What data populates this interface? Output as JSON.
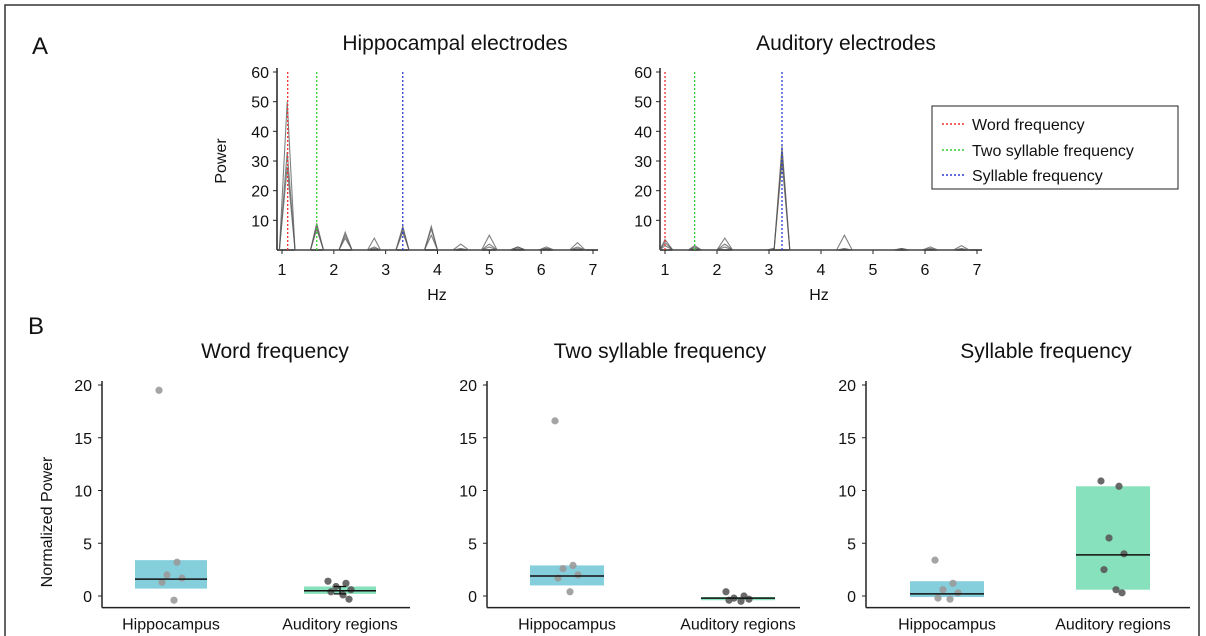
{
  "panels": {
    "a": "A",
    "b": "B"
  },
  "legend": [
    {
      "label": "Word frequency",
      "color": "#e8312f"
    },
    {
      "label": "Two syllable frequency",
      "color": "#33cc33"
    },
    {
      "label": "Syllable frequency",
      "color": "#2b3bd6"
    }
  ],
  "colors": {
    "hippocampus": "#7ecbda",
    "auditory": "#7fdfb8",
    "trace": "#555555",
    "point_light": "#9a9a9a",
    "point_dark": "#5a5a5a"
  },
  "chart_data": [
    {
      "type": "line",
      "title": "Hippocampal electrodes",
      "xlabel": "Hz",
      "ylabel": "Power",
      "xlim": [
        1,
        7
      ],
      "ylim": [
        0,
        60
      ],
      "xticks": [
        "1",
        "2",
        "3",
        "4",
        "5",
        "6",
        "7"
      ],
      "yticks": [
        "10",
        "20",
        "30",
        "40",
        "50",
        "60"
      ],
      "vlines": [
        {
          "x": 1.11,
          "legend": "Word frequency"
        },
        {
          "x": 1.67,
          "legend": "Two syllable frequency"
        },
        {
          "x": 3.33,
          "legend": "Syllable frequency"
        }
      ],
      "x": [
        0.95,
        1.1,
        1.25,
        1.55,
        1.67,
        1.8,
        2.1,
        2.22,
        2.35,
        2.65,
        2.78,
        2.9,
        3.2,
        3.33,
        3.45,
        3.75,
        3.88,
        4.0,
        4.3,
        4.45,
        4.6,
        4.85,
        5.0,
        5.15,
        5.4,
        5.55,
        5.7,
        5.95,
        6.1,
        6.25,
        6.55,
        6.7,
        6.85
      ],
      "series": [
        {
          "values": [
            0,
            50,
            0,
            0,
            8,
            0,
            0,
            6,
            0,
            0,
            4,
            0,
            0,
            7,
            0,
            0,
            7,
            0,
            0,
            2,
            0,
            0,
            5,
            0,
            0,
            1,
            0,
            0,
            0.5,
            0,
            0,
            2.5,
            0
          ]
        },
        {
          "values": [
            0,
            33,
            0,
            0,
            9,
            0,
            0,
            4,
            0,
            0,
            1,
            0,
            0,
            8,
            0,
            0,
            8,
            0,
            0,
            0.5,
            0,
            0,
            2,
            0,
            0,
            0.5,
            0,
            0,
            1,
            0,
            0,
            1,
            0
          ]
        },
        {
          "values": [
            0,
            28,
            0,
            0,
            7,
            0,
            0,
            5,
            0,
            0,
            0.5,
            0,
            0,
            6,
            0,
            0,
            5,
            0,
            0,
            0.3,
            0,
            0,
            1,
            0,
            0,
            1,
            0,
            0,
            0.5,
            0,
            0,
            0.5,
            0
          ]
        }
      ]
    },
    {
      "type": "line",
      "title": "Auditory electrodes",
      "xlabel": "Hz",
      "ylabel": "",
      "xlim": [
        1,
        7
      ],
      "ylim": [
        0,
        60
      ],
      "xticks": [
        "1",
        "2",
        "3",
        "4",
        "5",
        "6",
        "7"
      ],
      "yticks": [
        "10",
        "20",
        "30",
        "40",
        "50",
        "60"
      ],
      "vlines": [
        {
          "x": 1.0,
          "legend": "Word frequency"
        },
        {
          "x": 1.57,
          "legend": "Two syllable frequency"
        },
        {
          "x": 3.25,
          "legend": "Syllable frequency"
        }
      ],
      "x": [
        0.85,
        1.0,
        1.15,
        1.45,
        1.57,
        1.7,
        2.0,
        2.15,
        2.3,
        2.95,
        3.1,
        3.25,
        3.4,
        4.3,
        4.45,
        4.6,
        5.4,
        5.55,
        5.7,
        5.95,
        6.1,
        6.25,
        6.55,
        6.7,
        6.85
      ],
      "series": [
        {
          "values": [
            0,
            3.5,
            0,
            0,
            1,
            0,
            0,
            4,
            0,
            0,
            0.5,
            35,
            0,
            0,
            5,
            0,
            0,
            0.5,
            0,
            0,
            1,
            0,
            0,
            1.5,
            0
          ]
        },
        {
          "values": [
            0,
            2.5,
            0,
            0,
            1.5,
            0,
            0,
            2,
            0,
            0,
            0.3,
            33,
            0,
            0,
            0.5,
            0,
            0,
            0.3,
            0,
            0,
            0.5,
            0,
            0,
            0.5,
            0
          ]
        },
        {
          "values": [
            0,
            1.5,
            0,
            0,
            0.5,
            0,
            0,
            1,
            0,
            0,
            0.5,
            30,
            0,
            0,
            0.3,
            0,
            0,
            0.5,
            0,
            0,
            0.3,
            0,
            0,
            0.3,
            0
          ]
        }
      ]
    },
    {
      "type": "scatter",
      "title": "Word frequency",
      "ylabel": "Normalized Power",
      "ylim": [
        0,
        20
      ],
      "yticks": [
        "0",
        "5",
        "10",
        "15",
        "20"
      ],
      "categories": [
        "Hippocampus",
        "Auditory regions"
      ],
      "boxes": [
        {
          "low": 0.7,
          "high": 3.4,
          "median": 1.6,
          "color": "#7ecbda"
        },
        {
          "low": 0.2,
          "high": 0.9,
          "median": 0.5,
          "color": "#7fdfb8"
        }
      ],
      "points": [
        [
          19.5,
          3.2,
          2.0,
          1.7,
          1.3,
          -0.4
        ],
        [
          1.4,
          1.2,
          0.9,
          0.6,
          0.4,
          0.1,
          -0.3
        ]
      ]
    },
    {
      "type": "scatter",
      "title": "Two syllable frequency",
      "ylabel": "",
      "ylim": [
        0,
        20
      ],
      "yticks": [
        "0",
        "5",
        "10",
        "15",
        "20"
      ],
      "categories": [
        "Hippocampus",
        "Auditory regions"
      ],
      "boxes": [
        {
          "low": 1.0,
          "high": 2.9,
          "median": 1.9,
          "color": "#7ecbda"
        },
        {
          "low": -0.4,
          "high": -0.1,
          "median": -0.2,
          "color": "#7fdfb8"
        }
      ],
      "points": [
        [
          16.6,
          2.9,
          2.6,
          2.0,
          1.7,
          0.4
        ],
        [
          0.4,
          0.0,
          -0.2,
          -0.3,
          -0.4,
          -0.5
        ]
      ]
    },
    {
      "type": "scatter",
      "title": "Syllable frequency",
      "ylabel": "",
      "ylim": [
        0,
        20
      ],
      "yticks": [
        "0",
        "5",
        "10",
        "15",
        "20"
      ],
      "categories": [
        "Hippocampus",
        "Auditory regions"
      ],
      "boxes": [
        {
          "low": -0.1,
          "high": 1.4,
          "median": 0.2,
          "color": "#7ecbda"
        },
        {
          "low": 0.6,
          "high": 10.4,
          "median": 3.9,
          "color": "#7fdfb8"
        }
      ],
      "points": [
        [
          3.4,
          1.2,
          0.6,
          0.3,
          -0.2,
          -0.3
        ],
        [
          10.9,
          10.4,
          5.5,
          4.0,
          2.5,
          0.6,
          0.3
        ]
      ]
    }
  ]
}
